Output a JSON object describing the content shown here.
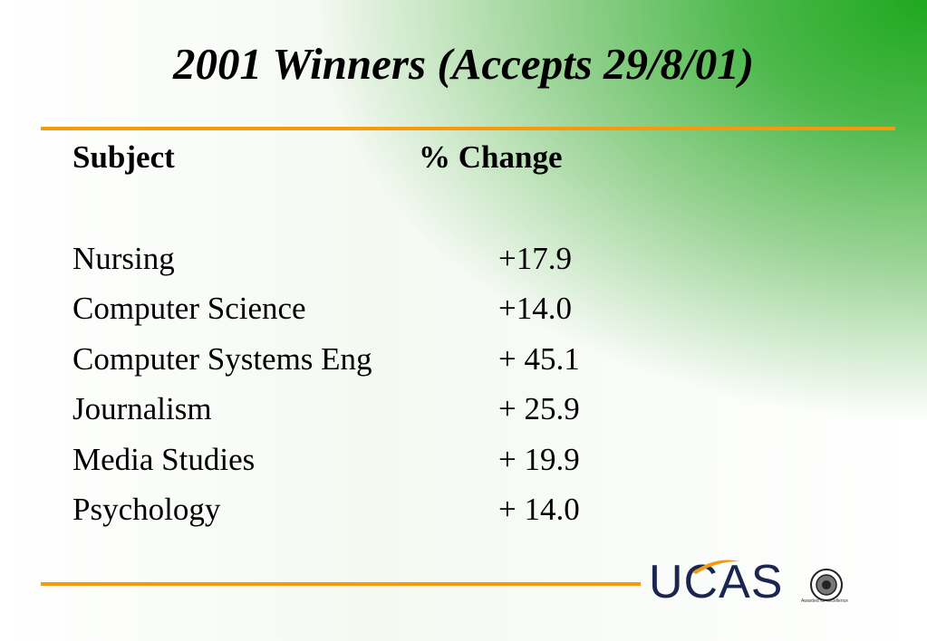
{
  "slide": {
    "title": "2001 Winners (Accepts 29/8/01)",
    "table": {
      "header": [
        "Subject",
        "% Change"
      ],
      "rows": [
        [
          "Nursing",
          "+17.9"
        ],
        [
          "Computer Science",
          "+14.0"
        ],
        [
          "Computer Systems Eng",
          "+ 45.1"
        ],
        [
          "Journalism",
          "+ 25.9"
        ],
        [
          "Media Studies",
          "+ 19.9"
        ],
        [
          "Psychology",
          "+ 14.0"
        ]
      ]
    },
    "logo": {
      "text": "UCAS",
      "seal_caption": "Awarded for excellence"
    }
  }
}
